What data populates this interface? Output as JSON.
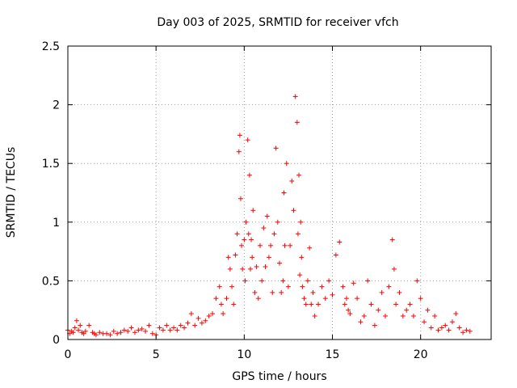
{
  "chart_data": {
    "type": "scatter",
    "title": "Day 003 of 2025, SRMTID for receiver vfch",
    "xlabel": "GPS time / hours",
    "ylabel": "SRMTID / TECUs",
    "xlim": [
      0,
      24
    ],
    "ylim": [
      0,
      2.5
    ],
    "xticks": [
      0,
      5,
      10,
      15,
      20
    ],
    "xtick_labels": [
      "0",
      "5",
      "10",
      "15",
      "20"
    ],
    "yticks": [
      0,
      0.5,
      1,
      1.5,
      2,
      2.5
    ],
    "ytick_labels": [
      "0",
      "0.5",
      "1",
      "1.5",
      "2",
      "2.5"
    ],
    "grid": true,
    "marker": "+",
    "marker_color": "#ff0000",
    "series": [
      {
        "name": "SRMTID",
        "x": [
          0.0,
          0.1,
          0.2,
          0.3,
          0.4,
          0.5,
          0.6,
          0.7,
          0.8,
          0.9,
          1.0,
          1.2,
          1.4,
          1.5,
          1.6,
          1.8,
          2.0,
          2.2,
          2.4,
          2.6,
          2.8,
          3.0,
          3.2,
          3.4,
          3.6,
          3.8,
          4.0,
          4.2,
          4.4,
          4.6,
          4.8,
          5.0,
          5.2,
          5.4,
          5.6,
          5.8,
          6.0,
          6.2,
          6.4,
          6.6,
          6.8,
          7.0,
          7.2,
          7.4,
          7.6,
          7.8,
          8.0,
          8.2,
          8.4,
          8.6,
          8.7,
          8.8,
          9.0,
          9.1,
          9.2,
          9.3,
          9.4,
          9.5,
          9.6,
          9.7,
          9.75,
          9.8,
          9.85,
          9.9,
          10.0,
          10.05,
          10.1,
          10.2,
          10.25,
          10.3,
          10.35,
          10.4,
          10.45,
          10.5,
          10.6,
          10.7,
          10.8,
          10.9,
          11.0,
          11.1,
          11.2,
          11.3,
          11.4,
          11.5,
          11.6,
          11.7,
          11.8,
          11.9,
          12.0,
          12.1,
          12.2,
          12.25,
          12.3,
          12.4,
          12.5,
          12.6,
          12.7,
          12.8,
          12.9,
          13.0,
          13.05,
          13.1,
          13.15,
          13.2,
          13.25,
          13.3,
          13.4,
          13.5,
          13.6,
          13.7,
          13.8,
          13.9,
          14.0,
          14.2,
          14.4,
          14.6,
          14.8,
          15.0,
          15.2,
          15.4,
          15.6,
          15.7,
          15.8,
          15.9,
          16.0,
          16.2,
          16.4,
          16.6,
          16.8,
          17.0,
          17.2,
          17.4,
          17.6,
          17.8,
          18.0,
          18.2,
          18.4,
          18.5,
          18.6,
          18.8,
          19.0,
          19.2,
          19.4,
          19.6,
          19.8,
          20.0,
          20.2,
          20.4,
          20.6,
          20.8,
          21.0,
          21.2,
          21.4,
          21.6,
          21.8,
          22.0,
          22.2,
          22.4,
          22.6,
          22.8
        ],
        "y": [
          0.08,
          0.05,
          0.07,
          0.06,
          0.1,
          0.16,
          0.08,
          0.12,
          0.06,
          0.05,
          0.07,
          0.12,
          0.06,
          0.05,
          0.04,
          0.06,
          0.05,
          0.05,
          0.04,
          0.07,
          0.05,
          0.06,
          0.08,
          0.07,
          0.1,
          0.06,
          0.08,
          0.09,
          0.07,
          0.12,
          0.05,
          0.04,
          0.1,
          0.08,
          0.12,
          0.08,
          0.1,
          0.08,
          0.12,
          0.1,
          0.14,
          0.22,
          0.12,
          0.18,
          0.14,
          0.16,
          0.2,
          0.22,
          0.35,
          0.45,
          0.3,
          0.22,
          0.35,
          0.7,
          0.6,
          0.45,
          0.3,
          0.72,
          0.9,
          1.6,
          1.74,
          1.2,
          0.8,
          0.6,
          0.85,
          0.5,
          1.0,
          1.7,
          0.9,
          1.4,
          0.6,
          0.85,
          0.7,
          1.1,
          0.4,
          0.62,
          0.35,
          0.8,
          0.5,
          0.95,
          0.62,
          1.05,
          0.7,
          0.8,
          0.4,
          0.9,
          1.63,
          1.0,
          0.65,
          0.4,
          0.5,
          1.25,
          0.8,
          1.5,
          0.45,
          0.8,
          1.35,
          1.1,
          2.07,
          1.85,
          0.9,
          1.4,
          0.55,
          1.0,
          0.7,
          0.45,
          0.35,
          0.3,
          0.5,
          0.78,
          0.3,
          0.4,
          0.2,
          0.3,
          0.45,
          0.35,
          0.5,
          0.38,
          0.72,
          0.83,
          0.45,
          0.3,
          0.35,
          0.25,
          0.22,
          0.48,
          0.35,
          0.15,
          0.2,
          0.5,
          0.3,
          0.12,
          0.25,
          0.4,
          0.2,
          0.45,
          0.85,
          0.6,
          0.3,
          0.4,
          0.2,
          0.25,
          0.3,
          0.2,
          0.5,
          0.35,
          0.15,
          0.25,
          0.1,
          0.2,
          0.08,
          0.1,
          0.12,
          0.08,
          0.15,
          0.22,
          0.1,
          0.06,
          0.08,
          0.07
        ]
      }
    ]
  }
}
